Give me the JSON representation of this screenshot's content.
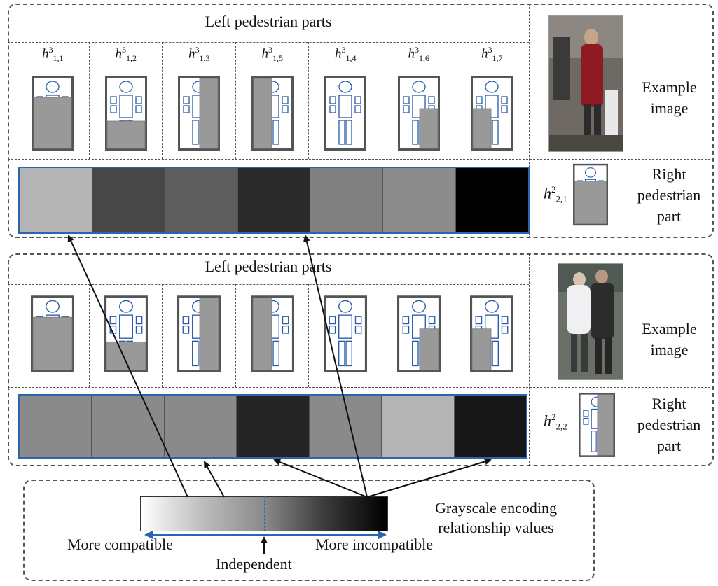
{
  "panels": [
    {
      "title": "Left pedestrian parts",
      "labels": [
        {
          "base": "h",
          "sup": "3",
          "sub": "1,1"
        },
        {
          "base": "h",
          "sup": "3",
          "sub": "1,2"
        },
        {
          "base": "h",
          "sup": "3",
          "sub": "1,3"
        },
        {
          "base": "h",
          "sup": "3",
          "sub": "1,5"
        },
        {
          "base": "h",
          "sup": "3",
          "sub": "1,4"
        },
        {
          "base": "h",
          "sup": "3",
          "sub": "1,6"
        },
        {
          "base": "h",
          "sup": "3",
          "sub": "1,7"
        }
      ],
      "parts": [
        "lower-body",
        "legs",
        "right-half",
        "left-half",
        "none",
        "lower-right",
        "lower-left"
      ],
      "relation_colors": [
        "#b4b4b4",
        "#474747",
        "#5e5e5e",
        "#2a2a2a",
        "#808080",
        "#8c8c8c",
        "#000000"
      ],
      "example_label": [
        "Example",
        "image"
      ],
      "right_label": {
        "base": "h",
        "sup": "2",
        "sub": "2,1"
      },
      "right_part": "lower-body",
      "right_text": [
        "Right",
        "pedestrian",
        "part"
      ]
    },
    {
      "title": "Left pedestrian parts",
      "labels": [],
      "parts": [
        "lower-body",
        "legs",
        "right-half",
        "left-half",
        "none",
        "lower-right",
        "lower-left"
      ],
      "relation_colors": [
        "#8a8a8a",
        "#8a8a8a",
        "#8a8a8a",
        "#252525",
        "#8a8a8a",
        "#b4b4b4",
        "#171717"
      ],
      "example_label": [
        "Example",
        "image"
      ],
      "right_label": {
        "base": "h",
        "sup": "2",
        "sub": "2,2"
      },
      "right_part": "right-half",
      "right_text": [
        "Right",
        "pedestrian",
        "part"
      ]
    }
  ],
  "legend": {
    "caption": [
      "Grayscale encoding",
      "relationship values"
    ],
    "left": "More compatible",
    "right": "More incompatible",
    "center": "Independent"
  },
  "colors": {
    "dash": "#555555",
    "strip_border": "#2a66b0",
    "part_fill": "#999999",
    "figure_line": "#2a5aa8",
    "frame": "#555555"
  }
}
